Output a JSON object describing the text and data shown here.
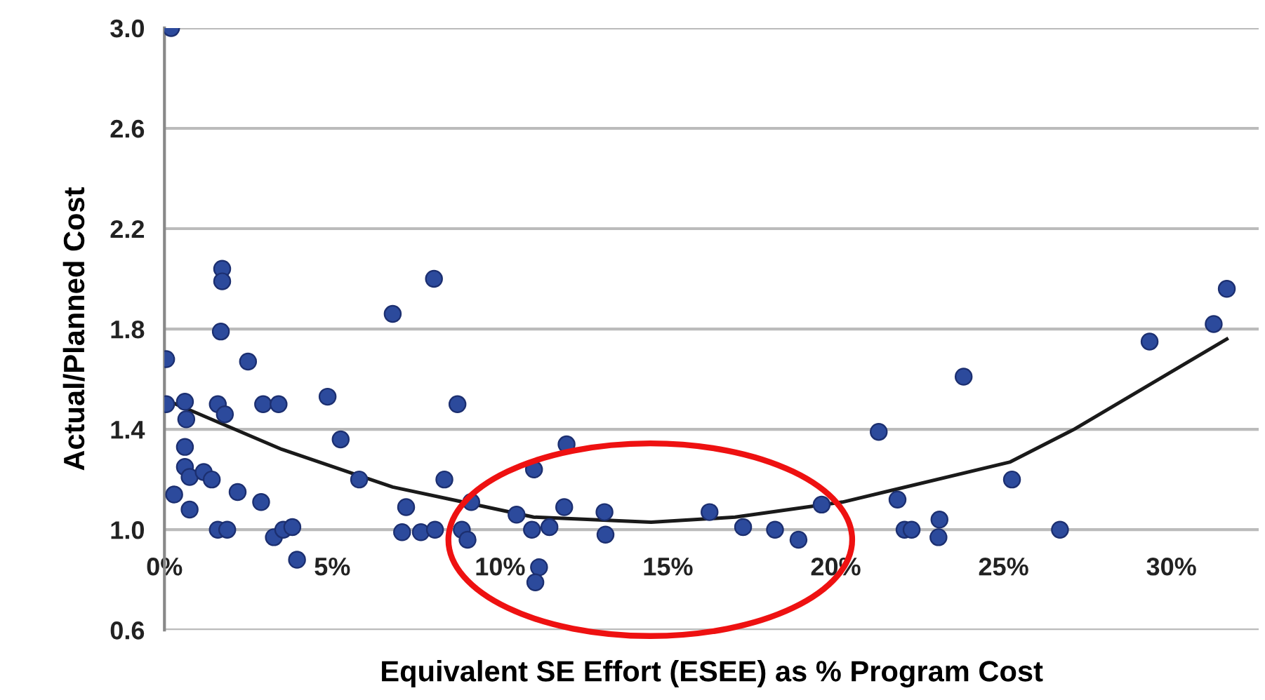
{
  "chart_data": {
    "type": "scatter",
    "xlabel": "Equivalent SE Effort (ESEE) as % Program Cost",
    "ylabel": "Actual/Planned Cost",
    "xlim": [
      0,
      32.6
    ],
    "ylim": [
      0.6,
      3.0
    ],
    "xticks": [
      {
        "value": 0,
        "label": "0%"
      },
      {
        "value": 5,
        "label": "5%"
      },
      {
        "value": 10,
        "label": "10%"
      },
      {
        "value": 15,
        "label": "15%"
      },
      {
        "value": 20,
        "label": "20%"
      },
      {
        "value": 25,
        "label": "25%"
      },
      {
        "value": 30,
        "label": "30%"
      }
    ],
    "yticks": [
      {
        "value": 0.6,
        "label": "0.6"
      },
      {
        "value": 1.0,
        "label": "1.0"
      },
      {
        "value": 1.4,
        "label": "1.4"
      },
      {
        "value": 1.8,
        "label": "1.8"
      },
      {
        "value": 2.2,
        "label": "2.2"
      },
      {
        "value": 2.6,
        "label": "2.6"
      },
      {
        "value": 3.0,
        "label": "3.0"
      }
    ],
    "grid": "y",
    "legend": false,
    "marker": "circle",
    "series": [
      {
        "color": "#2c4a9c",
        "x": [
          0.2,
          1.72,
          1.72,
          1.68,
          6.8,
          0.05,
          2.49,
          0.05,
          0.61,
          0.65,
          1.59,
          1.8,
          2.94,
          3.4,
          4.86,
          5.25,
          0.61,
          0.61,
          0.75,
          1.17,
          1.41,
          5.8,
          0.29,
          0.75,
          2.18,
          2.88,
          1.59,
          1.87,
          3.26,
          3.54,
          3.81,
          3.95,
          7.2,
          7.08,
          7.64,
          8.03,
          8.73,
          11.98,
          11.01,
          8.34,
          9.14,
          10.49,
          11.91,
          13.11,
          13.14,
          16.24,
          17.24,
          18.19,
          18.89,
          19.58,
          21.28,
          8.06,
          8.86,
          9.03,
          10.95,
          11.47,
          11.16,
          11.05,
          21.84,
          31.65,
          31.26,
          29.35,
          23.81,
          25.25,
          22.05,
          22.26,
          23.09,
          23.06,
          26.68
        ],
        "values": [
          3.0,
          2.04,
          1.99,
          1.79,
          1.86,
          1.68,
          1.67,
          1.5,
          1.51,
          1.44,
          1.5,
          1.46,
          1.5,
          1.5,
          1.53,
          1.36,
          1.33,
          1.25,
          1.21,
          1.23,
          1.2,
          1.2,
          1.14,
          1.08,
          1.15,
          1.11,
          1.0,
          1.0,
          0.97,
          1.0,
          1.01,
          0.88,
          1.09,
          0.99,
          0.99,
          2.0,
          1.5,
          1.34,
          1.24,
          1.2,
          1.11,
          1.06,
          1.09,
          1.07,
          0.98,
          1.07,
          1.01,
          1.0,
          0.96,
          1.1,
          1.39,
          1.0,
          1.0,
          0.96,
          1.0,
          1.01,
          0.85,
          0.79,
          1.12,
          1.96,
          1.82,
          1.75,
          1.61,
          1.2,
          1.0,
          1.0,
          1.04,
          0.97,
          1.0
        ]
      },
      {
        "type": "line",
        "color": "#1a1a1a",
        "marker": "none",
        "line_style": "solid",
        "x": [
          0,
          3.5,
          6.8,
          8.9,
          11,
          14.5,
          17,
          20.2,
          25.2,
          27.1,
          31.65
        ],
        "values": [
          1.52,
          1.32,
          1.17,
          1.11,
          1.05,
          1.03,
          1.05,
          1.11,
          1.27,
          1.4,
          1.76
        ]
      }
    ]
  }
}
